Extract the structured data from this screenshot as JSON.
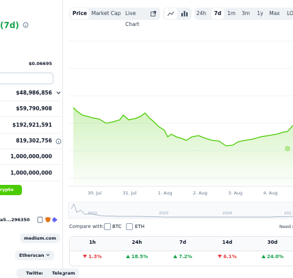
{
  "header": {
    "period": "(7d)"
  },
  "stats": {
    "low_price": "$0.06695",
    "rows": [
      "$48,986,856",
      "$59,790,908",
      "$192,921,591",
      "819,302,756",
      "1,000,000,000",
      "1,000,000,000"
    ]
  },
  "button": "rypto",
  "contract": "a5...296350",
  "links": [
    "medium.com",
    "Etherscan"
  ],
  "socials": [
    "Twitter",
    "Telegram"
  ],
  "chart_tabs": [
    "Price",
    "Market Cap",
    "Live Chart"
  ],
  "ranges": [
    "24h",
    "7d",
    "1m",
    "3m",
    "1y",
    "Max",
    "LO"
  ],
  "x_labels": [
    "30. Jul",
    "31. Jul",
    "1. Aug",
    "2. Aug",
    "3. Aug",
    "4. Aug"
  ],
  "navigator_labels": [
    "2022",
    "2023",
    "2024",
    "202"
  ],
  "compare": {
    "label": "Compare with:",
    "options": [
      "BTC",
      "ETH"
    ],
    "note": "Need m"
  },
  "performance": {
    "headers": [
      "1h",
      "24h",
      "7d",
      "14d",
      "30d"
    ],
    "values": [
      "1.3%",
      "18.5%",
      "7.2%",
      "6.1%",
      "24.0%"
    ],
    "trend": [
      "down",
      "up",
      "up",
      "down",
      "up"
    ]
  }
}
